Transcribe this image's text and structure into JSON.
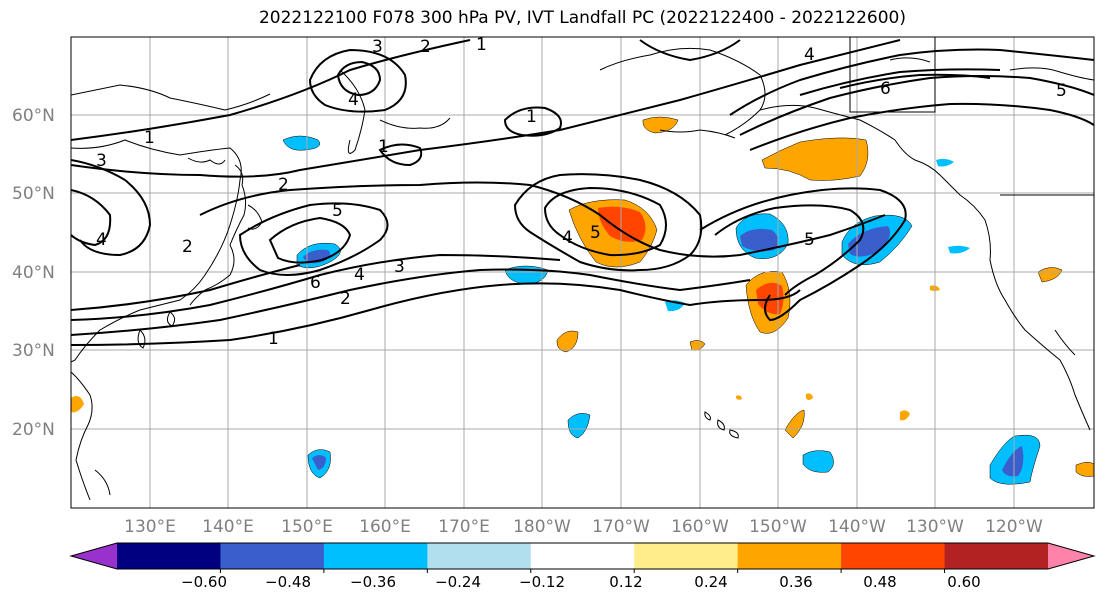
{
  "title": "2022122100 F078 300 hPa PV, IVT Landfall PC (2022122400 - 2022122600)",
  "lat_labels": [
    "60°N",
    "50°N",
    "40°N",
    "30°N",
    "20°N"
  ],
  "lon_labels": [
    "130°E",
    "140°E",
    "150°E",
    "160°E",
    "170°E",
    "180°W",
    "170°W",
    "160°W",
    "150°W",
    "140°W",
    "130°W",
    "120°W"
  ],
  "colorbar": {
    "tick_labels": [
      "−0.60",
      "−0.48",
      "−0.36",
      "−0.24",
      "−0.12",
      "0.12",
      "0.24",
      "0.36",
      "0.48",
      "0.60"
    ],
    "colors": [
      "#9932cc",
      "#000080",
      "#3a5fcd",
      "#00bfff",
      "#b2dfee",
      "#ffffff",
      "#ffec8b",
      "#ffa500",
      "#ff4500",
      "#b22222",
      "#ff82ab"
    ]
  },
  "pv_contour_labels": [
    "3",
    "2",
    "1",
    "4",
    "1",
    "1",
    "1",
    "3",
    "2",
    "4",
    "2",
    "5",
    "6",
    "4",
    "3",
    "2",
    "1",
    "4",
    "5",
    "5",
    "4",
    "6",
    "5"
  ],
  "colors": {
    "pv_contour": "#000000",
    "grid": "#a9a9a9",
    "coast": "#000000"
  }
}
